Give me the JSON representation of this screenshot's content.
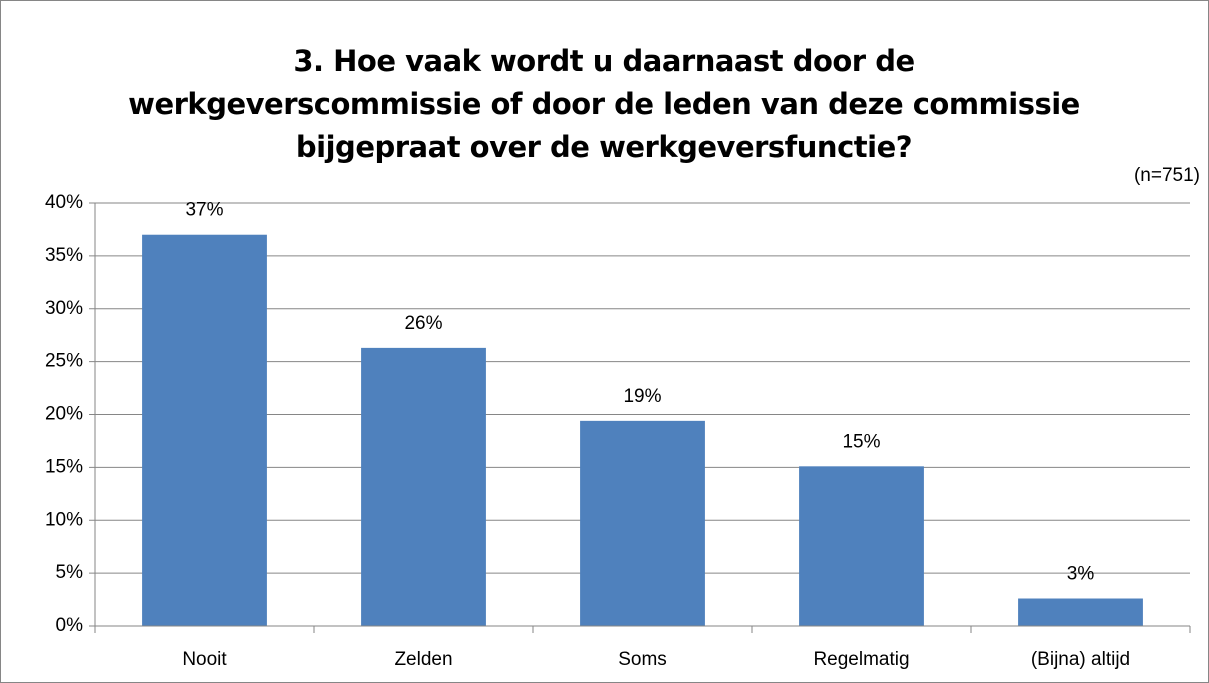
{
  "chart_data": {
    "type": "bar",
    "title": "3. Hoe vaak wordt u daarnaast door de werkgeverscommissie of door de leden van deze commissie bijgepraat over de werkgeversfunctie?",
    "subtitle": "(n=751)",
    "categories": [
      "Nooit",
      "Zelden",
      "Soms",
      "Regelmatig",
      "(Bijna) altijd"
    ],
    "values": [
      37,
      26.3,
      19.4,
      15.1,
      2.6
    ],
    "value_labels": [
      "37%",
      "26%",
      "19%",
      "15%",
      "3%"
    ],
    "color": "#4f81bd",
    "ylim": [
      0,
      40
    ],
    "yticks": [
      {
        "value": 0,
        "label": "0%"
      },
      {
        "value": 5,
        "label": "5%"
      },
      {
        "value": 10,
        "label": "10%"
      },
      {
        "value": 15,
        "label": "15%"
      },
      {
        "value": 20,
        "label": "20%"
      },
      {
        "value": 25,
        "label": "25%"
      },
      {
        "value": 30,
        "label": "30%"
      },
      {
        "value": 35,
        "label": "35%"
      },
      {
        "value": 40,
        "label": "40%"
      }
    ],
    "grid": true
  }
}
